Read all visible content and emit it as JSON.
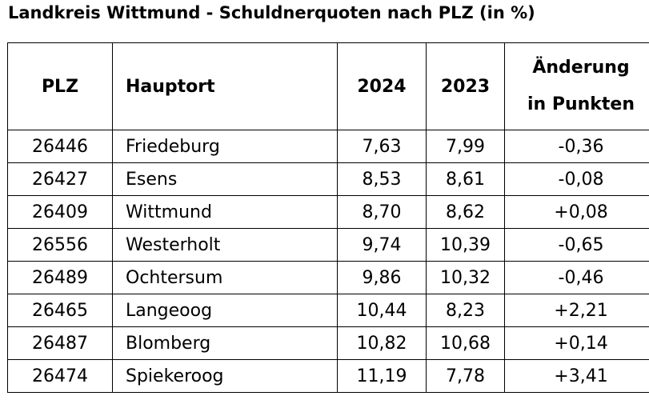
{
  "title": "Landkreis Wittmund - Schuldnerquoten nach PLZ (in %)",
  "table": {
    "headers": {
      "plz": "PLZ",
      "hauptort": "Hauptort",
      "year_2024": "2024",
      "year_2023": "2023",
      "change_line1": "Änderung",
      "change_line2": "in Punkten"
    },
    "rows": [
      {
        "plz": "26446",
        "hauptort": "Friedeburg",
        "q2024": "7,63",
        "q2023": "7,99",
        "change": "-0,36"
      },
      {
        "plz": "26427",
        "hauptort": "Esens",
        "q2024": "8,53",
        "q2023": "8,61",
        "change": "-0,08"
      },
      {
        "plz": "26409",
        "hauptort": "Wittmund",
        "q2024": "8,70",
        "q2023": "8,62",
        "change": "+0,08"
      },
      {
        "plz": "26556",
        "hauptort": "Westerholt",
        "q2024": "9,74",
        "q2023": "10,39",
        "change": "-0,65"
      },
      {
        "plz": "26489",
        "hauptort": "Ochtersum",
        "q2024": "9,86",
        "q2023": "10,32",
        "change": "-0,46"
      },
      {
        "plz": "26465",
        "hauptort": "Langeoog",
        "q2024": "10,44",
        "q2023": "8,23",
        "change": "+2,21"
      },
      {
        "plz": "26487",
        "hauptort": "Blomberg",
        "q2024": "10,82",
        "q2023": "10,68",
        "change": "+0,14"
      },
      {
        "plz": "26474",
        "hauptort": "Spiekeroog",
        "q2024": "11,19",
        "q2023": "7,78",
        "change": "+3,41"
      }
    ]
  }
}
